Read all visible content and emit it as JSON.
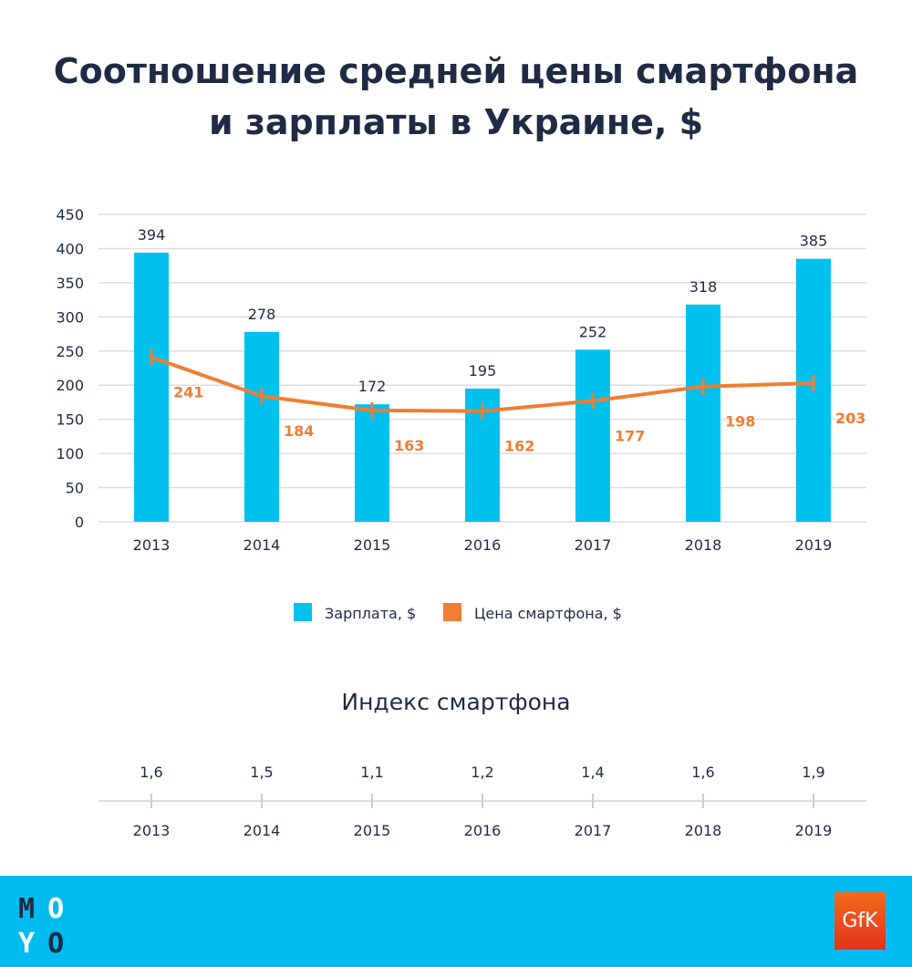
{
  "title_line1": "Соотношение средней цены смартфона",
  "title_line2": "и зарплаты в Украине, $",
  "chart_data": [
    {
      "type": "bar+line",
      "categories": [
        "2013",
        "2014",
        "2015",
        "2016",
        "2017",
        "2018",
        "2019"
      ],
      "series": [
        {
          "name": "Зарплата, $",
          "type": "bar",
          "color": "#00c0ee",
          "values": [
            394,
            278,
            172,
            195,
            252,
            318,
            385
          ]
        },
        {
          "name": "Цена смартфона, $",
          "type": "line",
          "color": "#ef7d32",
          "values": [
            241,
            184,
            163,
            162,
            177,
            198,
            203
          ]
        }
      ],
      "ylim": [
        0,
        450
      ],
      "yticks": [
        0,
        50,
        100,
        150,
        200,
        250,
        300,
        350,
        400,
        450
      ],
      "grid": true,
      "legend": "bottom"
    },
    {
      "type": "table",
      "title": "Индекс смартфона",
      "categories": [
        "2013",
        "2014",
        "2015",
        "2016",
        "2017",
        "2018",
        "2019"
      ],
      "values": [
        "1,6",
        "1,5",
        "1,1",
        "1,2",
        "1,4",
        "1,6",
        "1,9"
      ]
    }
  ],
  "footer": {
    "left_logo": "MOYO",
    "right_logo": "GfK",
    "bg": "#00bbf0"
  }
}
